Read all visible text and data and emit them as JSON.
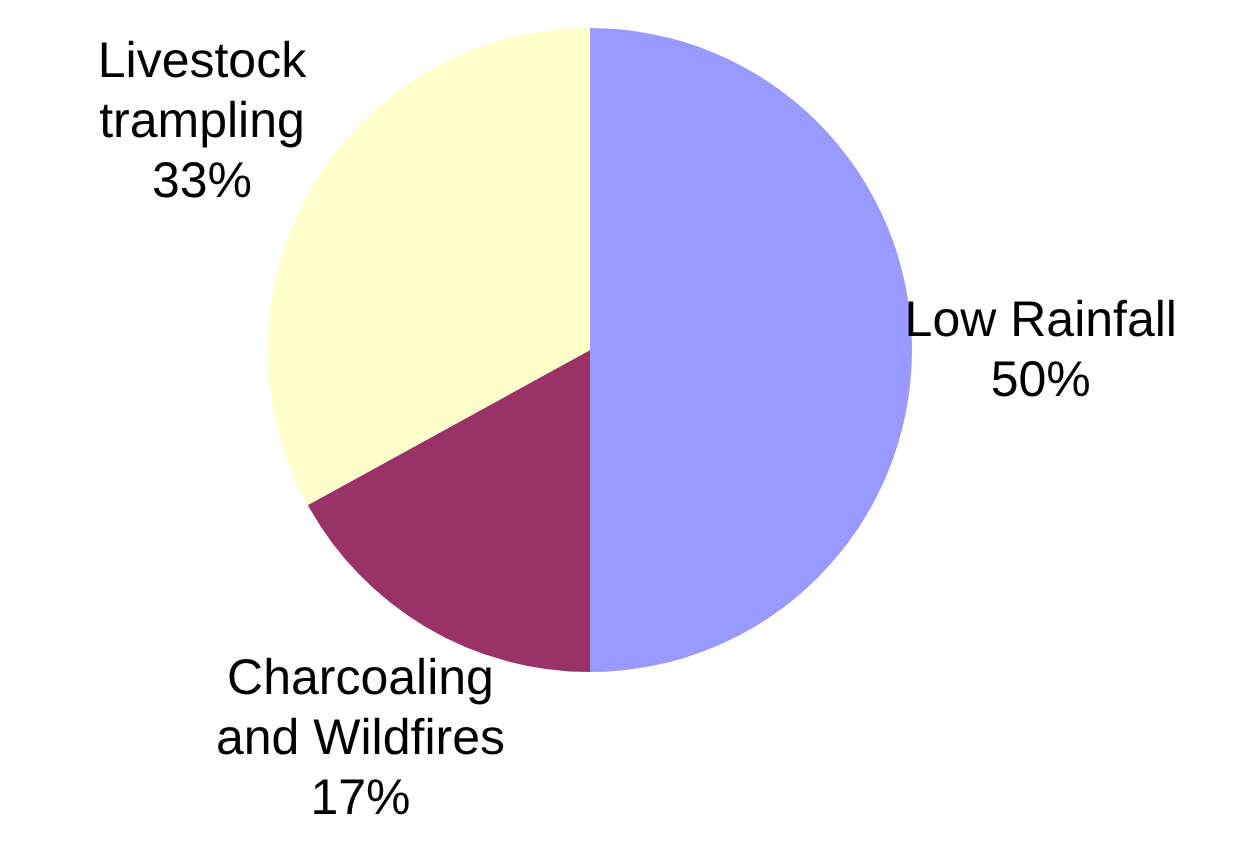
{
  "chart_data": {
    "type": "pie",
    "categories": [
      "Low Rainfall",
      "Charcoaling and Wildfires",
      "Livestock trampling"
    ],
    "values": [
      50,
      17,
      33
    ],
    "colors": [
      "#9999ff",
      "#993366",
      "#ffffcc"
    ],
    "value_labels": [
      "50%",
      "17%",
      "33%"
    ],
    "legend": false
  }
}
